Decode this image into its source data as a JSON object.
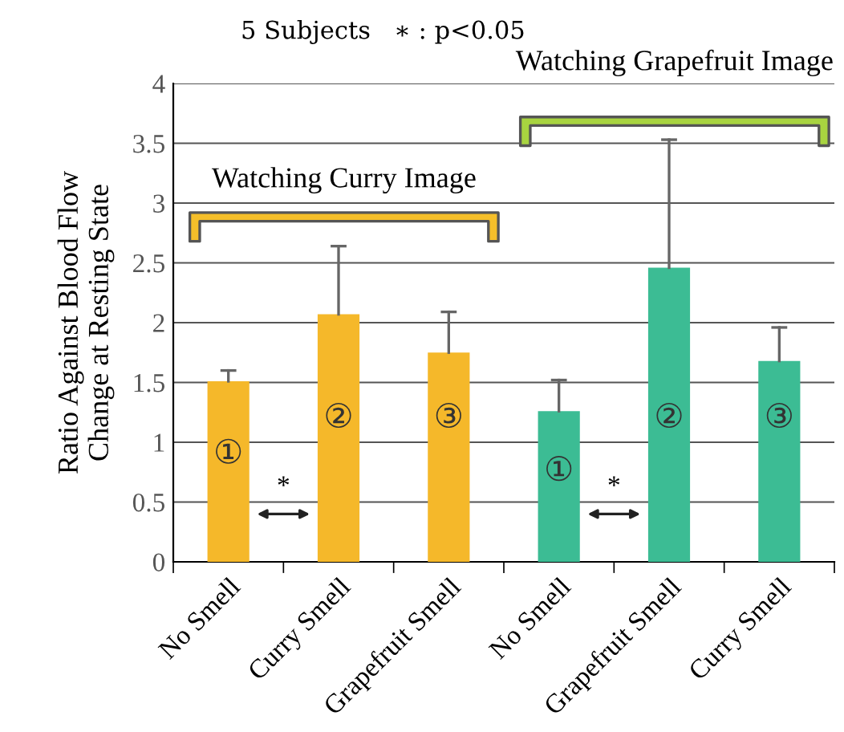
{
  "chart_data": {
    "type": "bar",
    "title": "5 Subjects   ∗ : p<0.05",
    "ylabel": "Ratio Against Blood Flow\nChange at Resting State",
    "categories": [
      "No Smell",
      "Curry Smell",
      "Grapefruit Smell",
      "No Smell",
      "Grapefruit Smell",
      "Curry Smell"
    ],
    "values": [
      1.51,
      2.07,
      1.75,
      1.26,
      2.46,
      1.68
    ],
    "colors": [
      "#f5b82a",
      "#f5b82a",
      "#f5b82a",
      "#3cbc94",
      "#3cbc94",
      "#3cbc94"
    ],
    "errors": [
      [
        1.51,
        1.6
      ],
      [
        2.07,
        2.64
      ],
      [
        1.75,
        2.09
      ],
      [
        1.26,
        1.52
      ],
      [
        2.46,
        3.53
      ],
      [
        1.68,
        1.96
      ]
    ],
    "ylim": [
      0,
      4
    ],
    "yticks": [
      0,
      0.5,
      1,
      1.5,
      2,
      2.5,
      3,
      3.5,
      4
    ],
    "grid": "y",
    "annotations": [
      "Watching Curry Image",
      "Watching Grapefruit Image",
      "①",
      "②",
      "③",
      "①",
      "②",
      "③",
      "*",
      "*"
    ]
  }
}
